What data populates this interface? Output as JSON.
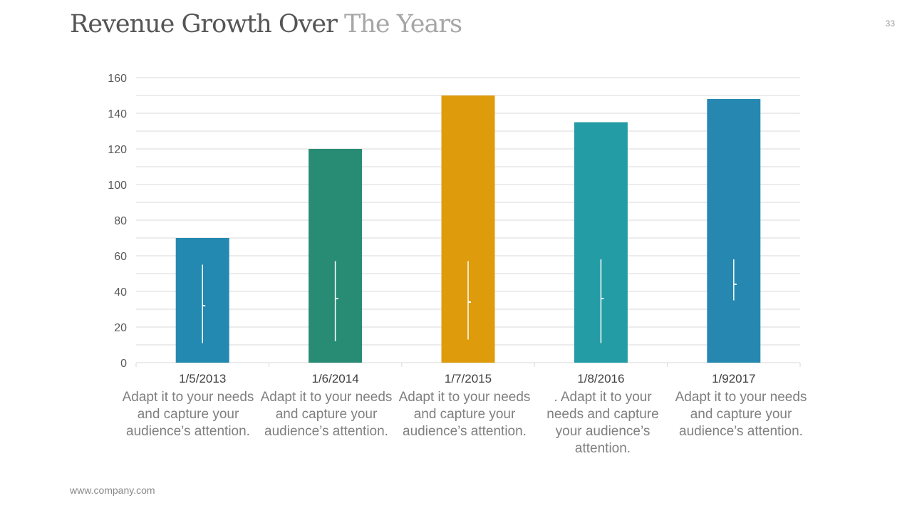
{
  "title": {
    "main": "Revenue Growth Over",
    "highlight": "The Years"
  },
  "page_number": "33",
  "footer": "www.company.com",
  "chart_data": {
    "type": "bar",
    "categories": [
      "1/5/2013",
      "1/6/2014",
      "1/7/2015",
      "1/8/2016",
      "1/92017"
    ],
    "values": [
      70,
      120,
      150,
      135,
      148
    ],
    "colors": [
      "#2389b0",
      "#288c74",
      "#de9c0c",
      "#239ca5",
      "#2688b0"
    ],
    "error_bars": [
      {
        "low": 11,
        "high": 55,
        "mid": 32
      },
      {
        "low": 12,
        "high": 57,
        "mid": 36
      },
      {
        "low": 13,
        "high": 57,
        "mid": 34
      },
      {
        "low": 11,
        "high": 58,
        "mid": 36
      },
      {
        "low": 35,
        "high": 58,
        "mid": 44
      }
    ],
    "ylim": [
      0,
      160
    ],
    "yticks": [
      0,
      20,
      40,
      60,
      80,
      100,
      120,
      140,
      160
    ],
    "minor_grid_step": 10,
    "grid": true,
    "title": "",
    "xlabel": "",
    "ylabel": ""
  },
  "descriptions": [
    "Adapt it to your needs and capture your audience’s attention.",
    "Adapt it to your needs and capture your audience’s attention.",
    "Adapt it to your needs and capture your audience’s attention.",
    ". Adapt it to your needs and capture your audience’s attention.",
    "Adapt it to your needs and capture your audience’s attention."
  ]
}
